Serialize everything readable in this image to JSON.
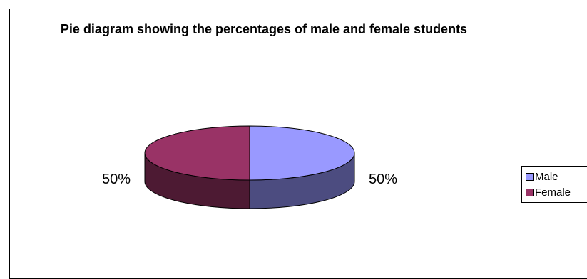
{
  "chart_data": {
    "type": "pie",
    "title": "Pie diagram showing the percentages of male and female students",
    "categories": [
      "Male",
      "Female"
    ],
    "values": [
      50,
      50
    ],
    "data_labels": [
      "50%",
      "50%"
    ],
    "colors": [
      "#9999FF",
      "#993366"
    ],
    "side_colors": [
      "#4C4C80",
      "#4D1A33"
    ],
    "legend_position": "right",
    "style": "3d"
  }
}
